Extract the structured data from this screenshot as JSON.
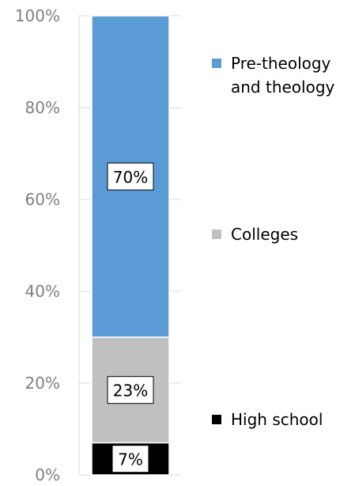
{
  "chart_data": {
    "type": "bar",
    "stacked": true,
    "categories": [
      ""
    ],
    "series": [
      {
        "name": "High school",
        "values": [
          7
        ],
        "label": "7%",
        "color": "#000000"
      },
      {
        "name": "Colleges",
        "values": [
          23
        ],
        "label": "23%",
        "color": "#c0c0c0"
      },
      {
        "name": "Pre-theology and theology",
        "values": [
          70
        ],
        "label": "70%",
        "color": "#5b9bd5"
      }
    ],
    "yaxis": {
      "ticks": [
        "0%",
        "20%",
        "40%",
        "60%",
        "80%",
        "100%"
      ],
      "range": [
        0,
        100
      ]
    },
    "legend": {
      "position": "right",
      "entries": [
        {
          "lines": [
            "Pre-theology",
            "and theology"
          ],
          "color": "#5b9bd5"
        },
        {
          "lines": [
            "Colleges"
          ],
          "color": "#c0c0c0"
        },
        {
          "lines": [
            "High school"
          ],
          "color": "#000000"
        }
      ]
    },
    "grid": false,
    "title": "",
    "xlabel": "",
    "ylabel": ""
  }
}
